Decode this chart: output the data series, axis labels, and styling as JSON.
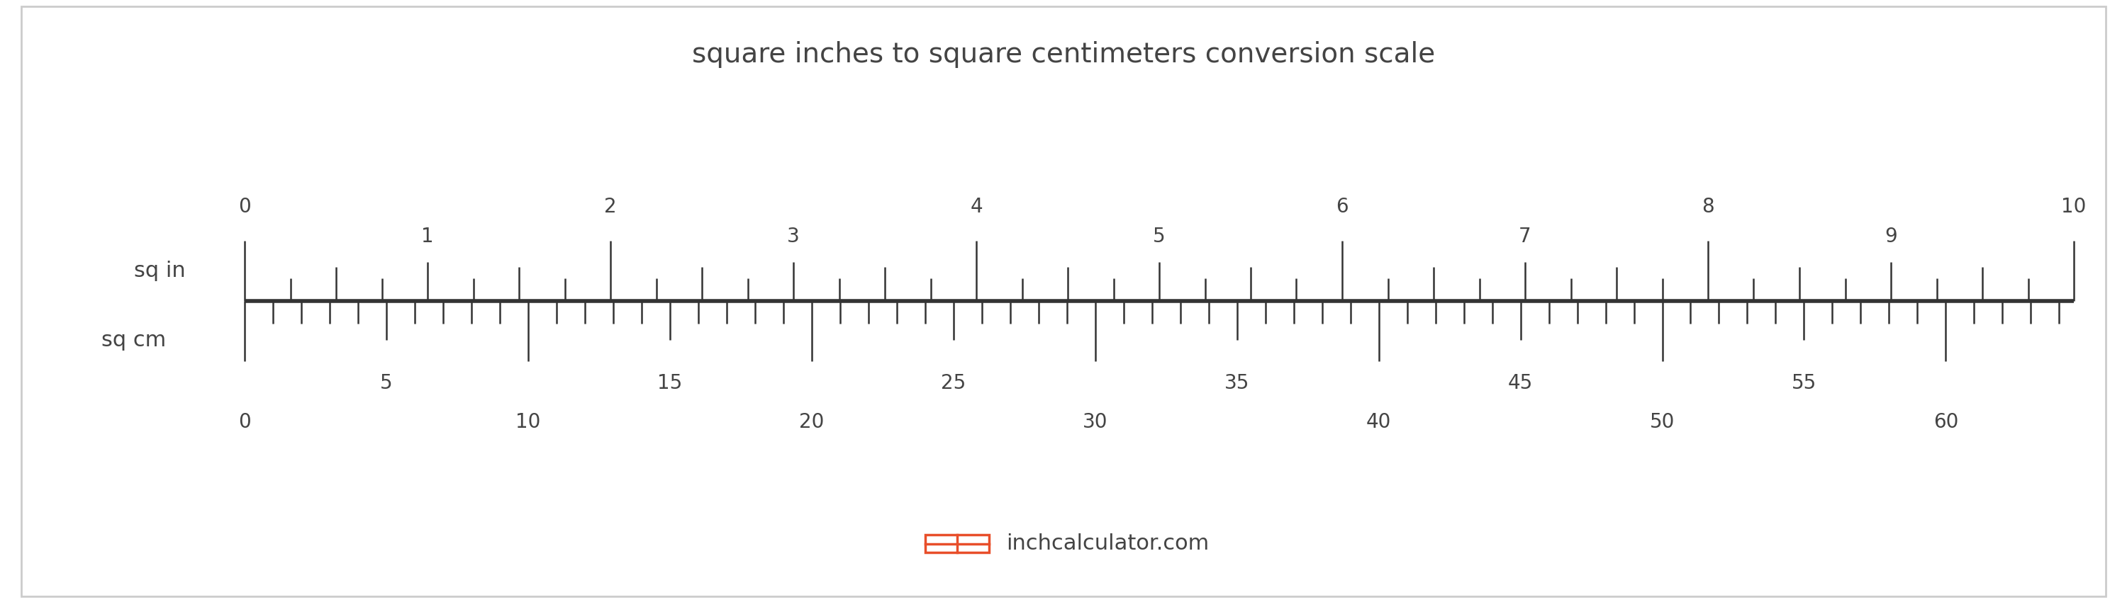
{
  "title": "square inches to square centimeters conversion scale",
  "title_fontsize": 28,
  "title_color": "#444444",
  "bg_color": "#ffffff",
  "border_color": "#cccccc",
  "ruler_line_color": "#333333",
  "sq_in_label": "sq in",
  "sq_cm_label": "sq cm",
  "label_fontsize": 22,
  "label_color": "#444444",
  "tick_color": "#333333",
  "number_color": "#444444",
  "number_fontsize": 20,
  "sq_in_max": 10,
  "conversion_factor": 6.4516,
  "sq_in_labeled": [
    0,
    1,
    2,
    3,
    4,
    5,
    6,
    7,
    8,
    9,
    10
  ],
  "sq_cm_labeled": [
    0,
    5,
    10,
    15,
    20,
    25,
    30,
    35,
    40,
    45,
    50,
    55,
    60
  ],
  "watermark_text": "inchcalculator.com",
  "watermark_fontsize": 22,
  "watermark_color": "#444444",
  "icon_color": "#e84e2a"
}
